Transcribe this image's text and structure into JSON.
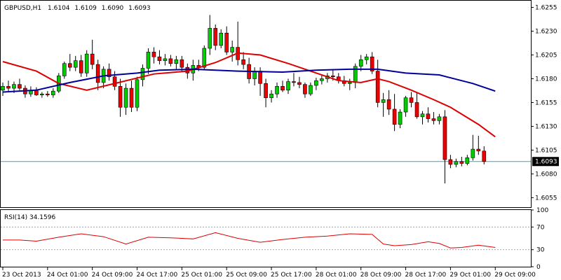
{
  "chart_data": {
    "type": "candlestick",
    "symbol_label": "GBPUSD,H1",
    "ohlc_header": [
      "1.6104",
      "1.6109",
      "1.6090",
      "1.6093"
    ],
    "current_price": 1.6093,
    "current_price_label": "1.6093",
    "ylim": [
      1.6045,
      1.6262
    ],
    "y_ticks": [
      {
        "v": 1.6255,
        "label": "1.6255"
      },
      {
        "v": 1.623,
        "label": "1.6230"
      },
      {
        "v": 1.6205,
        "label": "1.6205"
      },
      {
        "v": 1.618,
        "label": "1.6180"
      },
      {
        "v": 1.6155,
        "label": "1.6155"
      },
      {
        "v": 1.613,
        "label": "1.6130"
      },
      {
        "v": 1.6105,
        "label": "1.6105"
      },
      {
        "v": 1.608,
        "label": "1.6080"
      },
      {
        "v": 1.6055,
        "label": "1.6055"
      }
    ],
    "x_labels": [
      {
        "i": 0,
        "label": "23 Oct 2013"
      },
      {
        "i": 8,
        "label": "24 Oct 01:00"
      },
      {
        "i": 16,
        "label": "24 Oct 09:00"
      },
      {
        "i": 24,
        "label": "24 Oct 17:00"
      },
      {
        "i": 32,
        "label": "25 Oct 01:00"
      },
      {
        "i": 40,
        "label": "25 Oct 09:00"
      },
      {
        "i": 48,
        "label": "25 Oct 17:00"
      },
      {
        "i": 56,
        "label": "28 Oct 01:00"
      },
      {
        "i": 64,
        "label": "28 Oct 09:00"
      },
      {
        "i": 72,
        "label": "28 Oct 17:00"
      },
      {
        "i": 80,
        "label": "29 Oct 01:00"
      },
      {
        "i": 88,
        "label": "29 Oct 09:00"
      }
    ],
    "candles": [
      [
        1.6168,
        1.6176,
        1.6162,
        1.6172
      ],
      [
        1.6172,
        1.6178,
        1.6166,
        1.617
      ],
      [
        1.617,
        1.6177,
        1.6165,
        1.6174
      ],
      [
        1.6174,
        1.618,
        1.6168,
        1.617
      ],
      [
        1.617,
        1.6173,
        1.616,
        1.6164
      ],
      [
        1.6164,
        1.6172,
        1.6161,
        1.6168
      ],
      [
        1.6168,
        1.6171,
        1.6162,
        1.6163
      ],
      [
        1.6163,
        1.6166,
        1.616,
        1.6164
      ],
      [
        1.6164,
        1.6167,
        1.6161,
        1.6163
      ],
      [
        1.6163,
        1.617,
        1.616,
        1.6167
      ],
      [
        1.6167,
        1.6186,
        1.6165,
        1.6183
      ],
      [
        1.6183,
        1.6198,
        1.618,
        1.6196
      ],
      [
        1.6196,
        1.6206,
        1.6188,
        1.6192
      ],
      [
        1.6192,
        1.6204,
        1.6188,
        1.6199
      ],
      [
        1.6199,
        1.6205,
        1.6182,
        1.6186
      ],
      [
        1.6186,
        1.621,
        1.6182,
        1.6206
      ],
      [
        1.6206,
        1.6221,
        1.619,
        1.6195
      ],
      [
        1.6195,
        1.62,
        1.6168,
        1.6176
      ],
      [
        1.6176,
        1.6193,
        1.617,
        1.619
      ],
      [
        1.619,
        1.6196,
        1.6178,
        1.6182
      ],
      [
        1.6182,
        1.6188,
        1.6168,
        1.6172
      ],
      [
        1.6172,
        1.618,
        1.614,
        1.615
      ],
      [
        1.615,
        1.6175,
        1.6142,
        1.617
      ],
      [
        1.617,
        1.6178,
        1.6145,
        1.615
      ],
      [
        1.615,
        1.6182,
        1.6146,
        1.6179
      ],
      [
        1.6179,
        1.6195,
        1.6172,
        1.6191
      ],
      [
        1.6191,
        1.6212,
        1.6185,
        1.6208
      ],
      [
        1.6208,
        1.6213,
        1.6196,
        1.6203
      ],
      [
        1.6203,
        1.621,
        1.6195,
        1.6199
      ],
      [
        1.6199,
        1.6206,
        1.6194,
        1.6201
      ],
      [
        1.6201,
        1.6205,
        1.6193,
        1.6196
      ],
      [
        1.6196,
        1.6204,
        1.619,
        1.62
      ],
      [
        1.62,
        1.6204,
        1.6188,
        1.6192
      ],
      [
        1.6192,
        1.6196,
        1.618,
        1.6186
      ],
      [
        1.6186,
        1.62,
        1.6178,
        1.6194
      ],
      [
        1.6194,
        1.62,
        1.6188,
        1.6192
      ],
      [
        1.6192,
        1.6215,
        1.619,
        1.6212
      ],
      [
        1.6212,
        1.6247,
        1.6205,
        1.6233
      ],
      [
        1.6233,
        1.6237,
        1.621,
        1.6215
      ],
      [
        1.6215,
        1.6232,
        1.6212,
        1.6228
      ],
      [
        1.6228,
        1.6235,
        1.6205,
        1.6208
      ],
      [
        1.6208,
        1.622,
        1.6198,
        1.6213
      ],
      [
        1.6213,
        1.624,
        1.6194,
        1.62
      ],
      [
        1.62,
        1.6208,
        1.619,
        1.6195
      ],
      [
        1.6195,
        1.6202,
        1.6175,
        1.618
      ],
      [
        1.618,
        1.6192,
        1.6173,
        1.6188
      ],
      [
        1.6188,
        1.6192,
        1.6162,
        1.6175
      ],
      [
        1.6175,
        1.618,
        1.615,
        1.616
      ],
      [
        1.616,
        1.6168,
        1.6155,
        1.6164
      ],
      [
        1.6164,
        1.6176,
        1.616,
        1.6172
      ],
      [
        1.6172,
        1.6178,
        1.6166,
        1.6168
      ],
      [
        1.6168,
        1.618,
        1.6164,
        1.6177
      ],
      [
        1.6177,
        1.6186,
        1.6172,
        1.6176
      ],
      [
        1.6176,
        1.6182,
        1.617,
        1.6174
      ],
      [
        1.6174,
        1.6176,
        1.616,
        1.6164
      ],
      [
        1.6164,
        1.6176,
        1.6162,
        1.6173
      ],
      [
        1.6173,
        1.6181,
        1.6168,
        1.6178
      ],
      [
        1.6178,
        1.6184,
        1.6174,
        1.618
      ],
      [
        1.618,
        1.6186,
        1.6176,
        1.6183
      ],
      [
        1.6183,
        1.619,
        1.6178,
        1.6182
      ],
      [
        1.6182,
        1.6186,
        1.6175,
        1.6178
      ],
      [
        1.6178,
        1.6183,
        1.6172,
        1.6175
      ],
      [
        1.6175,
        1.618,
        1.6168,
        1.6176
      ],
      [
        1.6176,
        1.6196,
        1.617,
        1.6193
      ],
      [
        1.6193,
        1.6205,
        1.6188,
        1.62
      ],
      [
        1.62,
        1.6206,
        1.6195,
        1.6203
      ],
      [
        1.6203,
        1.6208,
        1.6185,
        1.6188
      ],
      [
        1.6188,
        1.62,
        1.615,
        1.6155
      ],
      [
        1.6155,
        1.6165,
        1.614,
        1.6158
      ],
      [
        1.6158,
        1.6168,
        1.6142,
        1.6148
      ],
      [
        1.6148,
        1.6164,
        1.6125,
        1.6132
      ],
      [
        1.6132,
        1.6148,
        1.6128,
        1.6145
      ],
      [
        1.6145,
        1.6162,
        1.614,
        1.616
      ],
      [
        1.616,
        1.6166,
        1.615,
        1.6155
      ],
      [
        1.6155,
        1.6165,
        1.6138,
        1.614
      ],
      [
        1.614,
        1.6146,
        1.6132,
        1.6143
      ],
      [
        1.6143,
        1.615,
        1.6134,
        1.6138
      ],
      [
        1.6138,
        1.6145,
        1.6132,
        1.6136
      ],
      [
        1.6136,
        1.6143,
        1.6132,
        1.614
      ],
      [
        1.614,
        1.6147,
        1.607,
        1.6095
      ],
      [
        1.6095,
        1.61,
        1.6086,
        1.609
      ],
      [
        1.609,
        1.6096,
        1.6087,
        1.6093
      ],
      [
        1.6093,
        1.6098,
        1.6088,
        1.6091
      ],
      [
        1.6091,
        1.61,
        1.6089,
        1.6097
      ],
      [
        1.6097,
        1.6121,
        1.6094,
        1.6106
      ],
      [
        1.6106,
        1.612,
        1.61,
        1.6104
      ],
      [
        1.6104,
        1.6109,
        1.609,
        1.6093
      ]
    ],
    "series": [
      {
        "name": "",
        "color": "#dd0000",
        "values": [
          [
            0,
            1.6198
          ],
          [
            6,
            1.6188
          ],
          [
            10,
            1.6175
          ],
          [
            15,
            1.6168
          ],
          [
            20,
            1.6175
          ],
          [
            27,
            1.6185
          ],
          [
            33,
            1.6188
          ],
          [
            38,
            1.6197
          ],
          [
            42,
            1.6207
          ],
          [
            46,
            1.6205
          ],
          [
            51,
            1.6196
          ],
          [
            56,
            1.6186
          ],
          [
            60,
            1.6178
          ],
          [
            64,
            1.6176
          ],
          [
            67,
            1.618
          ],
          [
            69,
            1.6177
          ],
          [
            73,
            1.6168
          ],
          [
            77,
            1.6158
          ],
          [
            80,
            1.615
          ],
          [
            85,
            1.6132
          ],
          [
            88,
            1.6119
          ]
        ]
      },
      {
        "name": "",
        "color": "#000099",
        "values": [
          [
            0,
            1.6166
          ],
          [
            6,
            1.6168
          ],
          [
            12,
            1.6176
          ],
          [
            18,
            1.6183
          ],
          [
            24,
            1.6186
          ],
          [
            28,
            1.6189
          ],
          [
            34,
            1.619
          ],
          [
            42,
            1.6188
          ],
          [
            50,
            1.6187
          ],
          [
            56,
            1.6189
          ],
          [
            62,
            1.619
          ],
          [
            67,
            1.619
          ],
          [
            72,
            1.6186
          ],
          [
            78,
            1.6184
          ],
          [
            84,
            1.6175
          ],
          [
            88,
            1.6167
          ]
        ]
      }
    ],
    "rsi": {
      "label": "RSI(14) 34.1596",
      "ylim": [
        0,
        100
      ],
      "levels": [
        30,
        70
      ],
      "ticks": [
        {
          "v": 100,
          "label": "100"
        },
        {
          "v": 70,
          "label": "70"
        },
        {
          "v": 30,
          "label": "30"
        },
        {
          "v": 0,
          "label": "0"
        }
      ],
      "color": "#dd0000",
      "values": [
        [
          0,
          47
        ],
        [
          3,
          47
        ],
        [
          6,
          45
        ],
        [
          10,
          52
        ],
        [
          14,
          58
        ],
        [
          18,
          53
        ],
        [
          22,
          40
        ],
        [
          26,
          52
        ],
        [
          30,
          51
        ],
        [
          34,
          49
        ],
        [
          38,
          60
        ],
        [
          42,
          50
        ],
        [
          46,
          43
        ],
        [
          50,
          48
        ],
        [
          54,
          52
        ],
        [
          58,
          54
        ],
        [
          62,
          58
        ],
        [
          66,
          57
        ],
        [
          68,
          40
        ],
        [
          70,
          37
        ],
        [
          73,
          39
        ],
        [
          76,
          44
        ],
        [
          78,
          41
        ],
        [
          80,
          33
        ],
        [
          82,
          34
        ],
        [
          85,
          38
        ],
        [
          88,
          34
        ]
      ]
    }
  }
}
